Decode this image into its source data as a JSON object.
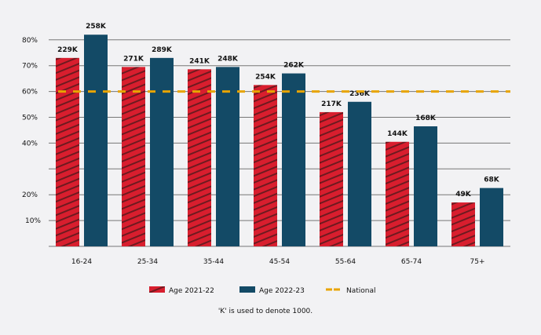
{
  "chart_data": {
    "type": "bar",
    "categories": [
      "16-24",
      "25-34",
      "35-44",
      "45-54",
      "55-64",
      "65-74",
      "75+"
    ],
    "series": [
      {
        "name": "Age 2021-22",
        "values": [
          73,
          69.5,
          68.6,
          62.5,
          52,
          40.5,
          17
        ],
        "labels": [
          "229K",
          "271K",
          "241K",
          "254K",
          "217K",
          "144K",
          "49K"
        ],
        "color": "#d81e2e",
        "pattern": "hatched"
      },
      {
        "name": "Age 2022-23",
        "values": [
          82,
          73,
          69.5,
          67,
          56,
          46.5,
          22.6
        ],
        "labels": [
          "258K",
          "289K",
          "248K",
          "262K",
          "236K",
          "168K",
          "68K"
        ],
        "color": "#134a66"
      }
    ],
    "reference_line": {
      "name": "National",
      "value": 60,
      "color": "#e8a400",
      "style": "dashed"
    },
    "yticks": [
      0,
      10,
      20,
      30,
      40,
      50,
      60,
      70,
      80
    ],
    "ytick_labels": [
      "",
      "10%",
      "20%",
      "",
      "40%",
      "50%",
      "60%",
      "70%",
      "80%"
    ],
    "ylim": [
      0,
      82
    ],
    "grid": true,
    "legend": "bottom",
    "footnote": "'K' is used to denote 1000."
  }
}
